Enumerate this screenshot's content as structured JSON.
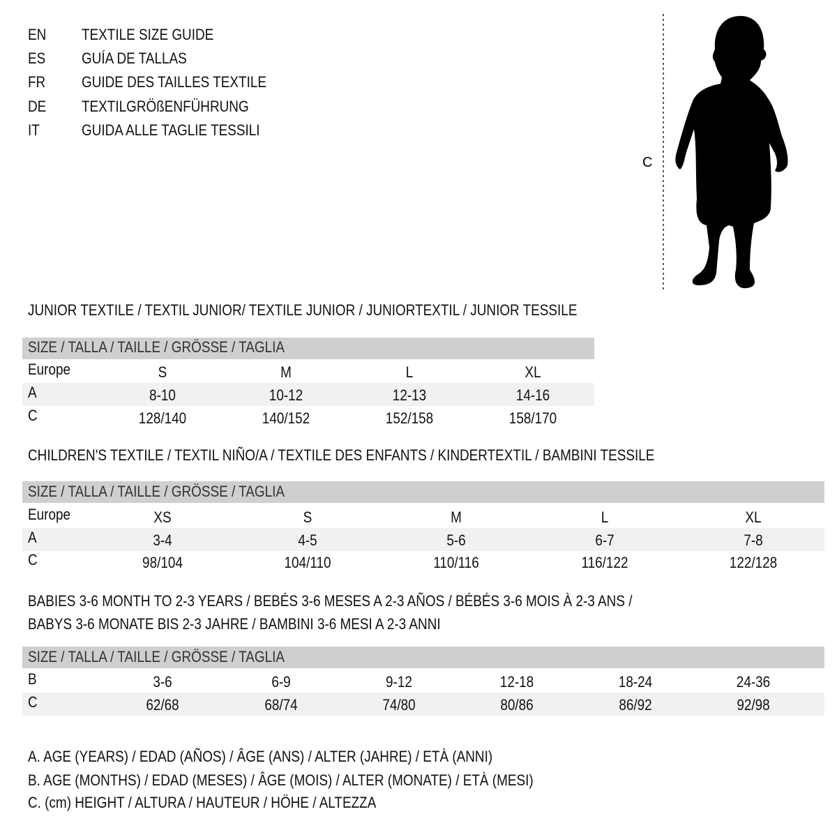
{
  "languages": [
    {
      "code": "EN",
      "title": "TEXTILE SIZE GUIDE"
    },
    {
      "code": "ES",
      "title": "GUÍA DE TALLAS"
    },
    {
      "code": "FR",
      "title": "GUIDE DES TAILLES TEXTILE"
    },
    {
      "code": "DE",
      "title": "TEXTILGRÖßENFÜHRUNG"
    },
    {
      "code": "IT",
      "title": "GUIDA ALLE TAGLIE TESSILI"
    }
  ],
  "figure": {
    "height_label": "C"
  },
  "junior": {
    "title": "JUNIOR TEXTILE / TEXTIL JUNIOR/ TEXTILE JUNIOR / JUNIORTEXTIL / JUNIOR TESSILE",
    "header": "SIZE / TALLA / TAILLE / GRÖSSE / TAGLIA",
    "rows": [
      {
        "label": "Europe",
        "values": [
          "S",
          "M",
          "L",
          "XL"
        ]
      },
      {
        "label": "A",
        "values": [
          "8-10",
          "10-12",
          "12-13",
          "14-16"
        ]
      },
      {
        "label": "C",
        "values": [
          "128/140",
          "140/152",
          "152/158",
          "158/170"
        ]
      }
    ]
  },
  "children": {
    "title": "CHILDREN'S TEXTILE / TEXTIL NIÑO/A / TEXTILE DES ENFANTS / KINDERTEXTIL / BAMBINI TESSILE",
    "header": "SIZE / TALLA / TAILLE / GRÖSSE / TAGLIA",
    "rows": [
      {
        "label": "Europe",
        "values": [
          "XS",
          "S",
          "M",
          "L",
          "XL"
        ]
      },
      {
        "label": "A",
        "values": [
          "3-4",
          "4-5",
          "5-6",
          "6-7",
          "7-8"
        ]
      },
      {
        "label": "C",
        "values": [
          "98/104",
          "104/110",
          "110/116",
          "116/122",
          "122/128"
        ]
      }
    ]
  },
  "babies": {
    "title_line1": "BABIES 3-6 MONTH TO 2-3 YEARS / BEBÉS 3-6 MESES A 2-3 AÑOS / BÉBÉS 3-6 MOIS À 2-3 ANS /",
    "title_line2": "BABYS 3-6 MONATE BIS 2-3 JAHRE / BAMBINI 3-6 MESI A 2-3 ANNI",
    "header": "SIZE / TALLA / TAILLE / GRÖSSE / TAGLIA",
    "rows": [
      {
        "label": "B",
        "values": [
          "3-6",
          "6-9",
          "9-12",
          "12-18",
          "18-24",
          "24-36"
        ]
      },
      {
        "label": "C",
        "values": [
          "62/68",
          "68/74",
          "74/80",
          "80/86",
          "86/92",
          "92/98"
        ]
      }
    ]
  },
  "legend": [
    "A. AGE (YEARS) / EDAD (AÑOS) / ÂGE (ANS) / ALTER (JAHRE) / ETÀ (ANNI)",
    "B. AGE (MONTHS) / EDAD (MESES) / ÂGE (MOIS) / ALTER (MONATE) / ETÀ (MESI)",
    "C. (cm) HEIGHT / ALTURA / HAUTEUR / HÖHE / ALTEZZA"
  ]
}
